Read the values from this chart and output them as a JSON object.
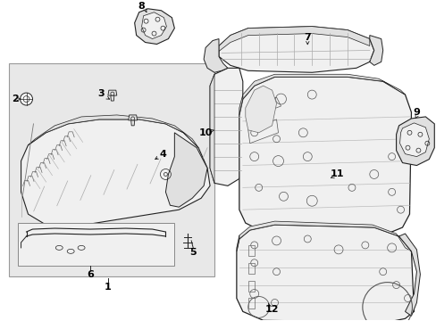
{
  "bg_color": "#ffffff",
  "line_color": "#222222",
  "fill_light": "#f0f0f0",
  "fill_mid": "#e0e0e0",
  "fill_dark": "#c8c8c8",
  "figsize": [
    4.89,
    3.6
  ],
  "dpi": 100,
  "box_fill": "#e8e8e8",
  "box_edge": "#999999"
}
